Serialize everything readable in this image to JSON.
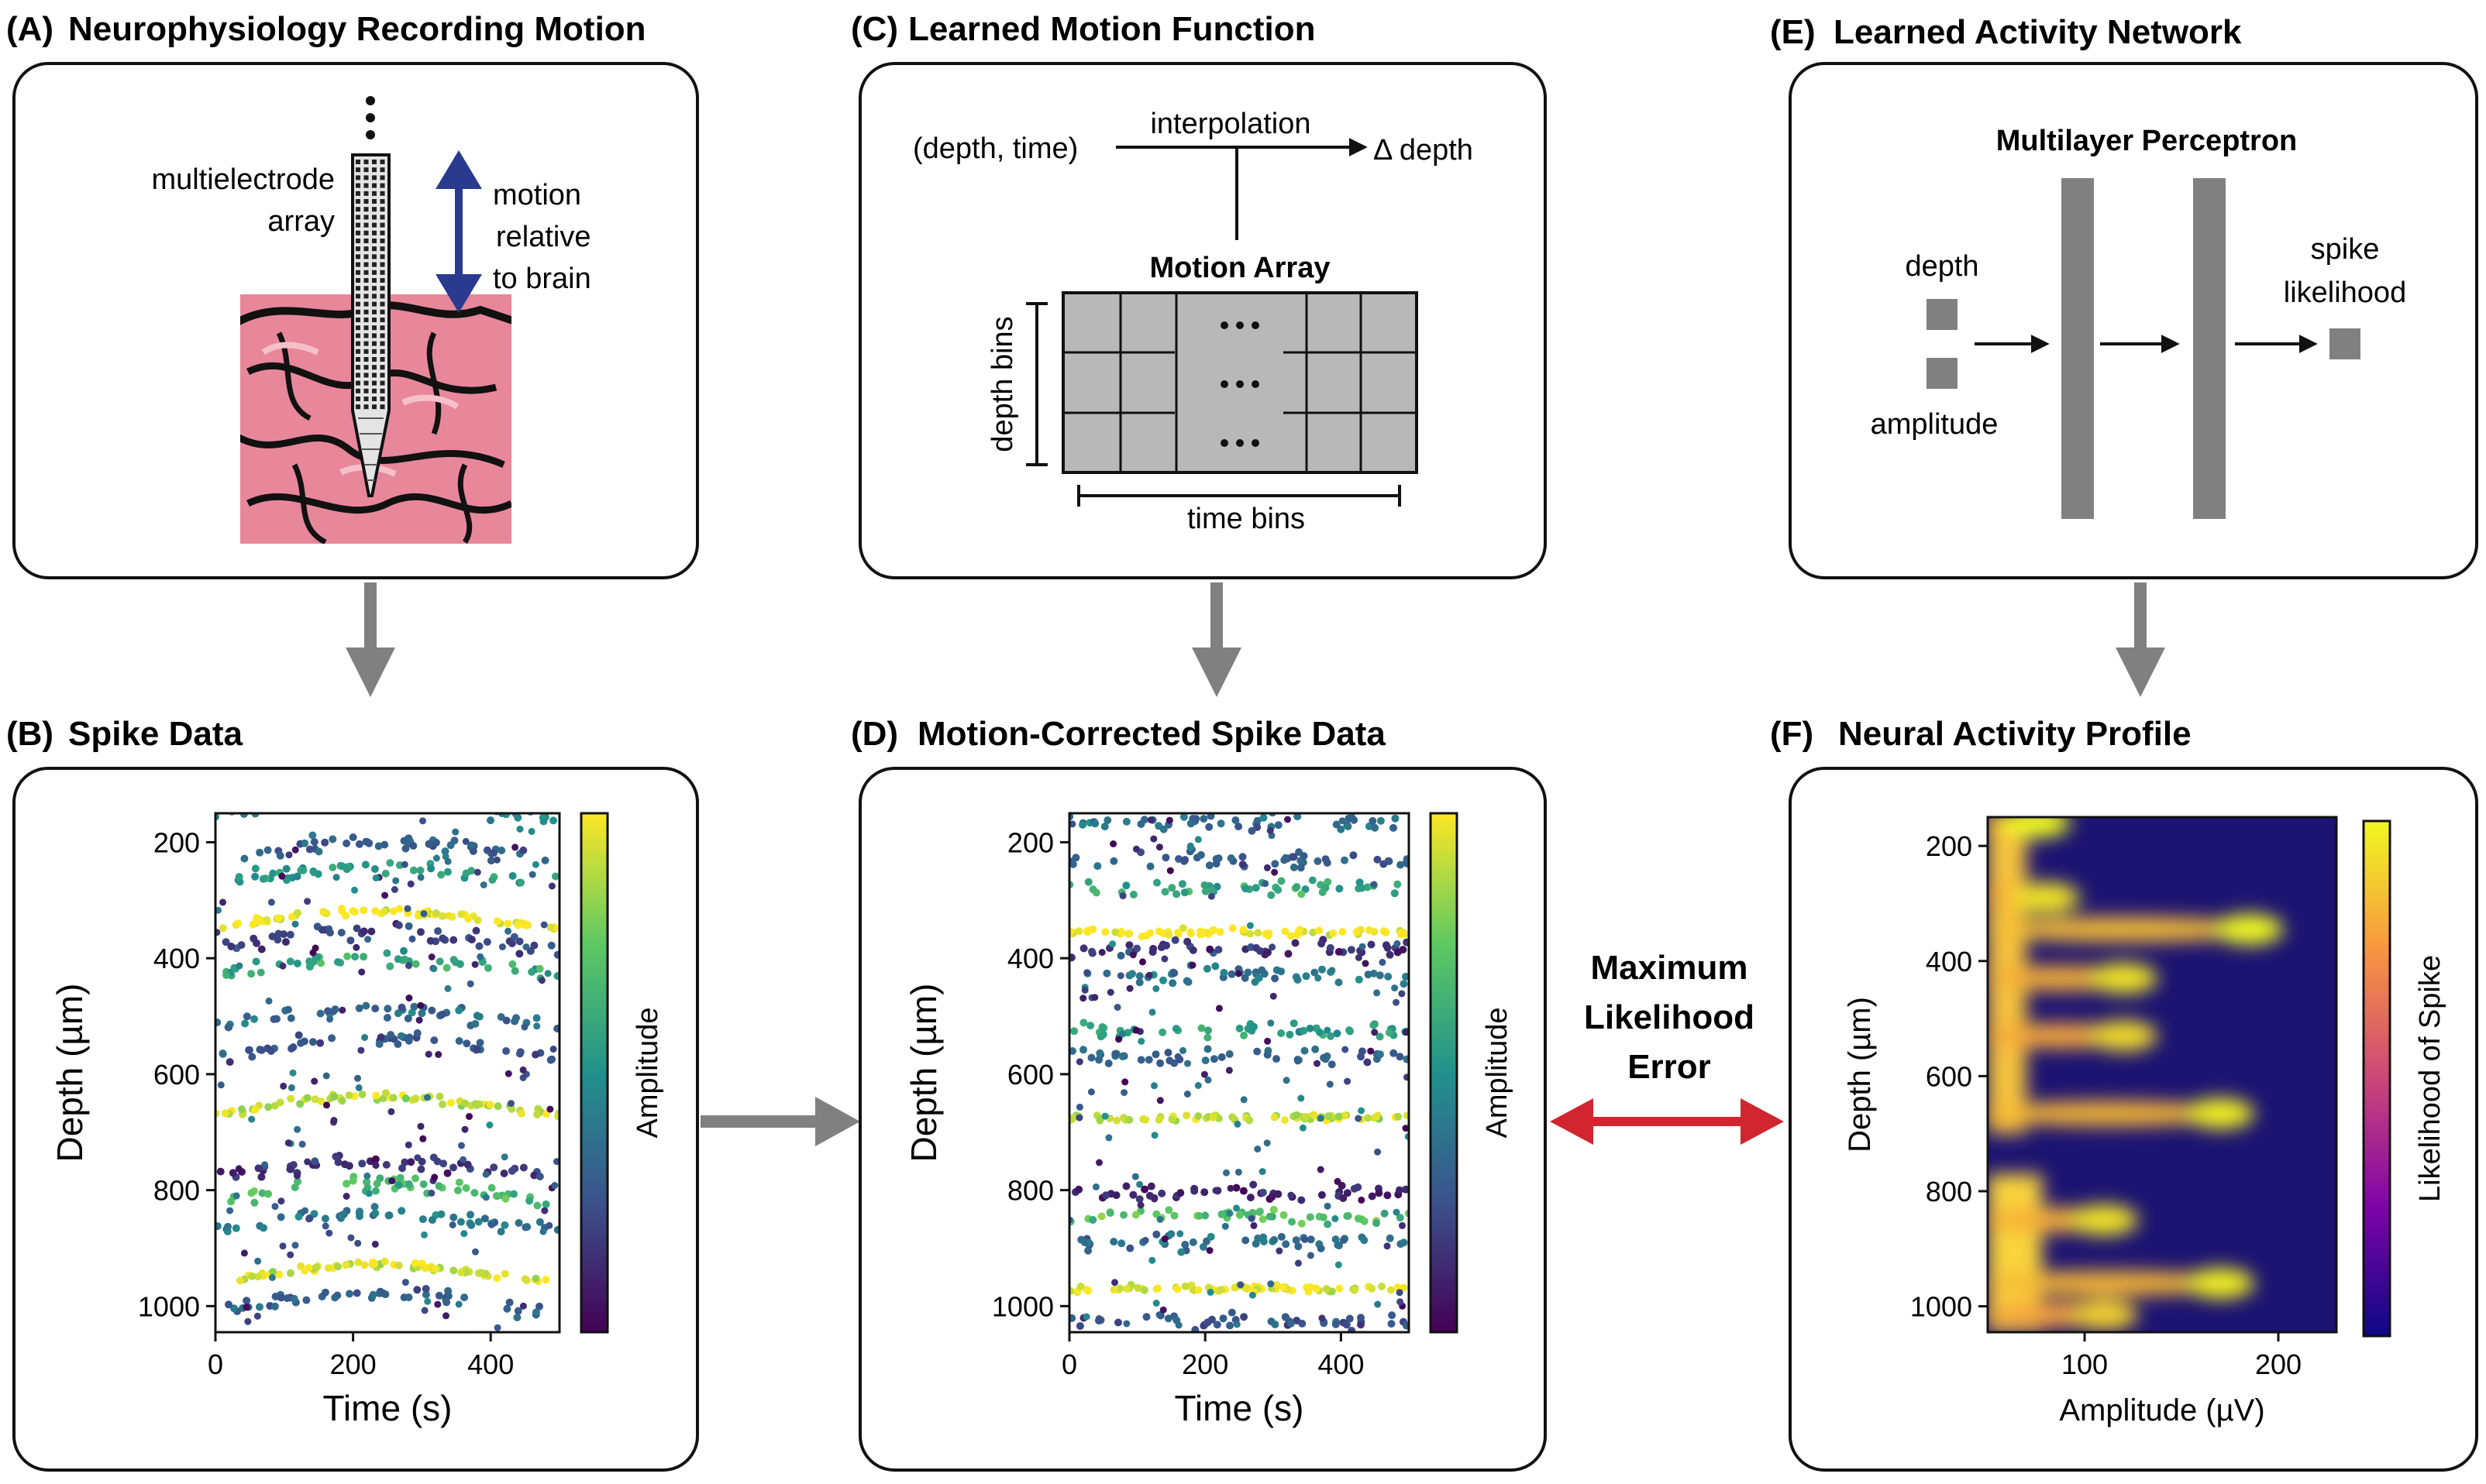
{
  "panels": {
    "a": {
      "label": "(A)",
      "title": "Neurophysiology Recording Motion",
      "probe_label_1": "multielectrode",
      "probe_label_2": "array",
      "motion_1": "motion",
      "motion_2": "relative",
      "motion_3": "to brain"
    },
    "b": {
      "label": "(B)",
      "title": "Spike Data"
    },
    "c": {
      "label": "(C)",
      "title": "Learned Motion Function",
      "input": "(depth, time)",
      "interp": "interpolation",
      "output": "Δ depth",
      "array_title": "Motion Array",
      "depth_bins": "depth bins",
      "time_bins": "time bins"
    },
    "d": {
      "label": "(D)",
      "title": "Motion-Corrected Spike Data"
    },
    "e": {
      "label": "(E)",
      "title": "Learned Activity Network",
      "mlp": "Multilayer Perceptron",
      "in_depth": "depth",
      "in_amp": "amplitude",
      "out_1": "spike",
      "out_2": "likelihood"
    },
    "f": {
      "label": "(F)",
      "title": "Neural Activity Profile"
    }
  },
  "error_label": [
    "Maximum",
    "Likelihood",
    "Error"
  ],
  "colors": {
    "arrow_gray": "#808080",
    "error_red": "#d1262f",
    "motion_blue": "#2a3a8f",
    "brain_pink": "#e8879a",
    "grid_gray": "#b8b8b8"
  },
  "chart_data": [
    {
      "id": "b",
      "type": "scatter",
      "xlabel": "Time (s)",
      "ylabel": "Depth (µm)",
      "colorbar_label": "Amplitude",
      "xlim": [
        0,
        500
      ],
      "ylim": [
        1045,
        150
      ],
      "xticks": [
        "0",
        "200",
        "400"
      ],
      "xtick_values": [
        0,
        200,
        400
      ],
      "yticks": [
        "200",
        "400",
        "600",
        "800",
        "1000"
      ],
      "ytick_values": [
        200,
        400,
        600,
        800,
        1000
      ],
      "colormap": "viridis",
      "bands": [
        {
          "depth": 160,
          "amp": 0.45
        },
        {
          "depth": 230,
          "amp": 0.3
        },
        {
          "depth": 275,
          "amp": 0.55
        },
        {
          "depth": 350,
          "amp": 1.0
        },
        {
          "depth": 385,
          "amp": 0.2
        },
        {
          "depth": 430,
          "amp": 0.6
        },
        {
          "depth": 520,
          "amp": 0.35
        },
        {
          "depth": 570,
          "amp": 0.25
        },
        {
          "depth": 670,
          "amp": 0.9
        },
        {
          "depth": 780,
          "amp": 0.15
        },
        {
          "depth": 820,
          "amp": 0.7
        },
        {
          "depth": 870,
          "amp": 0.4
        },
        {
          "depth": 960,
          "amp": 0.95
        },
        {
          "depth": 1010,
          "amp": 0.3
        }
      ],
      "drift": true
    },
    {
      "id": "d",
      "type": "scatter",
      "xlabel": "Time (s)",
      "ylabel": "Depth (µm)",
      "colorbar_label": "Amplitude",
      "xlim": [
        0,
        500
      ],
      "ylim": [
        1045,
        150
      ],
      "xticks": [
        "0",
        "200",
        "400"
      ],
      "xtick_values": [
        0,
        200,
        400
      ],
      "yticks": [
        "200",
        "400",
        "600",
        "800",
        "1000"
      ],
      "ytick_values": [
        200,
        400,
        600,
        800,
        1000
      ],
      "colormap": "viridis",
      "bands": [
        {
          "depth": 165,
          "amp": 0.35
        },
        {
          "depth": 230,
          "amp": 0.3
        },
        {
          "depth": 280,
          "amp": 0.6
        },
        {
          "depth": 355,
          "amp": 1.0
        },
        {
          "depth": 385,
          "amp": 0.15
        },
        {
          "depth": 430,
          "amp": 0.4
        },
        {
          "depth": 525,
          "amp": 0.55
        },
        {
          "depth": 570,
          "amp": 0.3
        },
        {
          "depth": 675,
          "amp": 0.9
        },
        {
          "depth": 805,
          "amp": 0.1
        },
        {
          "depth": 845,
          "amp": 0.7
        },
        {
          "depth": 890,
          "amp": 0.35
        },
        {
          "depth": 970,
          "amp": 0.95
        },
        {
          "depth": 1025,
          "amp": 0.25
        }
      ],
      "drift": false
    },
    {
      "id": "f",
      "type": "heatmap",
      "xlabel": "Amplitude (µV)",
      "ylabel": "Depth (µm)",
      "colorbar_label": "Likelihood of Spike",
      "xlim": [
        50,
        230
      ],
      "ylim": [
        1045,
        150
      ],
      "xticks": [
        "100",
        "200"
      ],
      "xtick_values": [
        100,
        200
      ],
      "yticks": [
        "200",
        "400",
        "600",
        "800",
        "1000"
      ],
      "ytick_values": [
        200,
        400,
        600,
        800,
        1000
      ],
      "colormap": "plasma",
      "blobs": [
        {
          "depth": 160,
          "amp": 75,
          "strength": 1.0
        },
        {
          "depth": 290,
          "amp": 80,
          "strength": 0.9
        },
        {
          "depth": 345,
          "amp": 185,
          "strength": 1.0
        },
        {
          "depth": 430,
          "amp": 120,
          "strength": 0.9
        },
        {
          "depth": 530,
          "amp": 120,
          "strength": 0.85
        },
        {
          "depth": 665,
          "amp": 170,
          "strength": 0.95
        },
        {
          "depth": 850,
          "amp": 110,
          "strength": 0.9
        },
        {
          "depth": 960,
          "amp": 170,
          "strength": 0.95
        },
        {
          "depth": 1015,
          "amp": 110,
          "strength": 0.8
        }
      ]
    }
  ]
}
